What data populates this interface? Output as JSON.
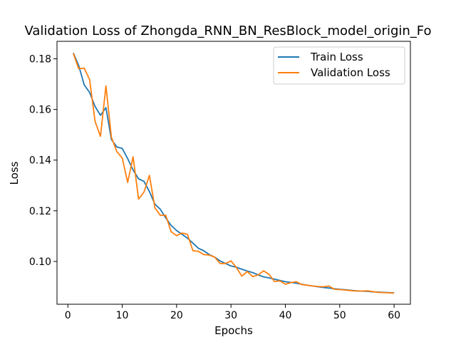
{
  "chart_data": {
    "type": "line",
    "title": "Validation Loss of Zhongda_RNN_BN_ResBlock_model_origin_Fo",
    "xlabel": "Epochs",
    "ylabel": "Loss",
    "xlim": [
      -2,
      63
    ],
    "ylim": [
      0.0831,
      0.1869
    ],
    "xticks": [
      0,
      10,
      20,
      30,
      40,
      50,
      60
    ],
    "yticks": [
      0.1,
      0.12,
      0.14,
      0.16,
      0.18
    ],
    "ytick_labels": [
      "0.10",
      "0.12",
      "0.14",
      "0.16",
      "0.18"
    ],
    "grid": false,
    "legend_position": "upper right",
    "x": [
      1,
      2,
      3,
      4,
      5,
      6,
      7,
      8,
      9,
      10,
      11,
      12,
      13,
      14,
      15,
      16,
      17,
      18,
      19,
      20,
      21,
      22,
      23,
      24,
      25,
      26,
      27,
      28,
      29,
      30,
      31,
      32,
      33,
      34,
      35,
      36,
      37,
      38,
      39,
      40,
      41,
      42,
      43,
      44,
      45,
      46,
      47,
      48,
      49,
      50,
      51,
      52,
      53,
      54,
      55,
      56,
      57,
      58,
      59,
      60
    ],
    "series": [
      {
        "name": "Train Loss",
        "color": "#1f77b4",
        "values": [
          0.1823,
          0.1773,
          0.1697,
          0.1667,
          0.1612,
          0.1577,
          0.1607,
          0.1482,
          0.1452,
          0.1446,
          0.1406,
          0.1361,
          0.1326,
          0.1316,
          0.1276,
          0.1226,
          0.1206,
          0.1172,
          0.1142,
          0.1122,
          0.1107,
          0.1092,
          0.1072,
          0.1052,
          0.1042,
          0.1027,
          0.1017,
          0.1002,
          0.0992,
          0.0982,
          0.0977,
          0.0969,
          0.0962,
          0.0956,
          0.0947,
          0.0939,
          0.0935,
          0.093,
          0.0925,
          0.092,
          0.0917,
          0.0914,
          0.091,
          0.0906,
          0.0903,
          0.09,
          0.0897,
          0.0895,
          0.0892,
          0.089,
          0.0888,
          0.0886,
          0.0884,
          0.0883,
          0.0882,
          0.088,
          0.0879,
          0.0878,
          0.0877,
          0.0876
        ]
      },
      {
        "name": "Validation Loss",
        "color": "#ff7f0e",
        "values": [
          0.1821,
          0.1761,
          0.1763,
          0.1718,
          0.1553,
          0.1494,
          0.1693,
          0.1491,
          0.1434,
          0.1408,
          0.1312,
          0.1413,
          0.1246,
          0.1274,
          0.134,
          0.1212,
          0.1182,
          0.1182,
          0.1117,
          0.1102,
          0.1112,
          0.1107,
          0.1042,
          0.104,
          0.1027,
          0.1025,
          0.1017,
          0.0992,
          0.0992,
          0.1002,
          0.0976,
          0.0942,
          0.096,
          0.094,
          0.0947,
          0.0963,
          0.0949,
          0.0921,
          0.0923,
          0.091,
          0.0916,
          0.092,
          0.0909,
          0.0906,
          0.0903,
          0.0901,
          0.09,
          0.0903,
          0.089,
          0.0889,
          0.0887,
          0.0885,
          0.0883,
          0.0883,
          0.0884,
          0.0881,
          0.0878,
          0.0877,
          0.0876,
          0.0875
        ]
      }
    ]
  }
}
